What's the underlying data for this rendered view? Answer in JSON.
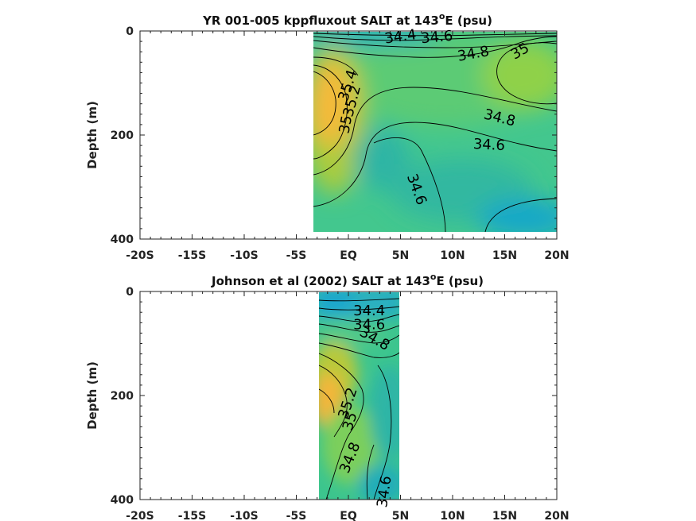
{
  "chart_data": [
    {
      "type": "heatmap",
      "title_main": "YR 001-005 kppfluxout SALT at 143",
      "title_sup": "o",
      "title_tail": "E (psu)",
      "ylabel": "Depth (m)",
      "xlabel": "",
      "xlim": [
        -20,
        20
      ],
      "ylim": [
        400,
        0
      ],
      "y_reversed": true,
      "x_ticks": [
        -20,
        -15,
        -10,
        -5,
        0,
        5,
        10,
        15,
        20
      ],
      "x_tick_labels": [
        "-20S",
        "-15S",
        "-10S",
        "-5S",
        "EQ",
        "5N",
        "10N",
        "15N",
        "20N"
      ],
      "y_ticks": [
        0,
        200,
        400
      ],
      "y_tick_labels": [
        "0",
        "200",
        "400"
      ],
      "data_extent": {
        "x": [
          -3.3,
          20
        ],
        "y": [
          0,
          387
        ]
      },
      "contour_labels": [
        {
          "text": "34.4",
          "x": 5.0,
          "y": 12,
          "rotate": -8
        },
        {
          "text": "34.6",
          "x": 8.5,
          "y": 13,
          "rotate": -5
        },
        {
          "text": "34.8",
          "x": 12.0,
          "y": 45,
          "rotate": -10
        },
        {
          "text": "35",
          "x": 16.5,
          "y": 40,
          "rotate": -30
        },
        {
          "text": "35.4",
          "x": 0.0,
          "y": 105,
          "rotate": -72
        },
        {
          "text": "35.2",
          "x": 0.4,
          "y": 135,
          "rotate": -75
        },
        {
          "text": "35",
          "x": -0.2,
          "y": 180,
          "rotate": -80
        },
        {
          "text": "34.8",
          "x": 14.5,
          "y": 168,
          "rotate": 14
        },
        {
          "text": "34.6",
          "x": 13.5,
          "y": 220,
          "rotate": 3
        },
        {
          "text": "34.6",
          "x": 6.5,
          "y": 305,
          "rotate": 70
        }
      ]
    },
    {
      "type": "heatmap",
      "title_main": "Johnson et al (2002) SALT at 143",
      "title_sup": "o",
      "title_tail": "E (psu)",
      "ylabel": "Depth (m)",
      "xlabel": "",
      "xlim": [
        -20,
        20
      ],
      "ylim": [
        400,
        0
      ],
      "y_reversed": true,
      "x_ticks": [
        -20,
        -15,
        -10,
        -5,
        0,
        5,
        10,
        15,
        20
      ],
      "x_tick_labels": [
        "-20S",
        "-15S",
        "-10S",
        "-5S",
        "EQ",
        "5N",
        "10N",
        "15N",
        "20N"
      ],
      "y_ticks": [
        0,
        200,
        400
      ],
      "y_tick_labels": [
        "0",
        "200",
        "400"
      ],
      "data_extent": {
        "x": [
          -2.8,
          5.0
        ],
        "y": [
          0,
          400
        ]
      },
      "contour_labels": [
        {
          "text": "34.4",
          "x": 2.0,
          "y": 38,
          "rotate": 0
        },
        {
          "text": "34.6",
          "x": 2.0,
          "y": 65,
          "rotate": 0
        },
        {
          "text": "34.8",
          "x": 2.5,
          "y": 92,
          "rotate": 30
        },
        {
          "text": "35.2",
          "x": 0.0,
          "y": 215,
          "rotate": -72
        },
        {
          "text": "35",
          "x": 0.2,
          "y": 250,
          "rotate": -72
        },
        {
          "text": "34.8",
          "x": 0.2,
          "y": 320,
          "rotate": -68
        },
        {
          "text": "34.6",
          "x": 3.5,
          "y": 385,
          "rotate": -82
        }
      ]
    }
  ]
}
